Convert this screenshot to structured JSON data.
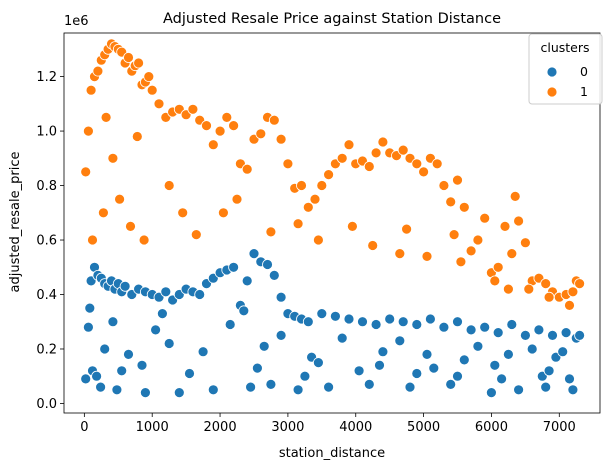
{
  "chart_data": {
    "type": "scatter",
    "title": "Adjusted Resale Price against Station Distance",
    "xlabel": "station_distance",
    "ylabel": "adjusted_resale_price",
    "y_offset_label": "1e6",
    "xlim": [
      -300,
      7600
    ],
    "ylim": [
      -0.035,
      1.36
    ],
    "y_unit_multiplier": 1000000,
    "xticks": [
      0,
      1000,
      2000,
      3000,
      4000,
      5000,
      6000,
      7000
    ],
    "xtick_labels": [
      "0",
      "1000",
      "2000",
      "3000",
      "4000",
      "5000",
      "6000",
      "7000"
    ],
    "yticks": [
      0.0,
      0.2,
      0.4,
      0.6,
      0.8,
      1.0,
      1.2
    ],
    "ytick_labels": [
      "0.0",
      "0.2",
      "0.4",
      "0.6",
      "0.8",
      "1.0",
      "1.2"
    ],
    "grid": false,
    "legend": {
      "title": "clusters",
      "placement": "top-right",
      "entries": [
        {
          "label": "0",
          "color": "#1f77b4"
        },
        {
          "label": "1",
          "color": "#ff7f0e"
        }
      ]
    },
    "series": [
      {
        "name": "0",
        "color": "#1f77b4",
        "x": [
          20,
          60,
          100,
          150,
          200,
          250,
          300,
          350,
          400,
          450,
          500,
          550,
          600,
          700,
          800,
          900,
          1000,
          1100,
          1200,
          1300,
          1400,
          1500,
          1600,
          1700,
          1800,
          1900,
          2000,
          2100,
          2200,
          2300,
          2400,
          2500,
          2600,
          2700,
          2800,
          2900,
          3000,
          3100,
          3200,
          3300,
          3500,
          3700,
          3900,
          4100,
          4300,
          4500,
          4700,
          4900,
          5100,
          5300,
          5500,
          5700,
          5900,
          6100,
          6300,
          6500,
          6700,
          6900,
          7100,
          7250,
          7300,
          120,
          240,
          480,
          900,
          1400,
          1900,
          2450,
          2750,
          3150,
          3600,
          4200,
          4800,
          5400,
          6000,
          6400,
          6800,
          7200,
          300,
          650,
          1250,
          1750,
          2650,
          3350,
          4400,
          5050,
          5600,
          6250,
          6950,
          420,
          1050,
          2150,
          2900,
          3800,
          4650,
          5800,
          6600,
          7050,
          180,
          550,
          850,
          1550,
          2550,
          3250,
          4050,
          4900,
          5500,
          6150,
          6750,
          7150,
          80,
          1150,
          2350,
          3450,
          4350,
          5150,
          6050,
          6850
        ],
        "y": [
          0.09,
          0.28,
          0.45,
          0.5,
          0.47,
          0.46,
          0.44,
          0.43,
          0.45,
          0.42,
          0.44,
          0.41,
          0.43,
          0.4,
          0.42,
          0.41,
          0.4,
          0.39,
          0.41,
          0.38,
          0.4,
          0.42,
          0.41,
          0.4,
          0.44,
          0.46,
          0.48,
          0.49,
          0.5,
          0.36,
          0.45,
          0.55,
          0.52,
          0.51,
          0.47,
          0.39,
          0.33,
          0.32,
          0.31,
          0.3,
          0.33,
          0.32,
          0.31,
          0.3,
          0.29,
          0.31,
          0.3,
          0.29,
          0.31,
          0.28,
          0.3,
          0.27,
          0.28,
          0.26,
          0.29,
          0.25,
          0.27,
          0.25,
          0.26,
          0.24,
          0.25,
          0.12,
          0.06,
          0.05,
          0.04,
          0.04,
          0.05,
          0.06,
          0.07,
          0.05,
          0.06,
          0.07,
          0.06,
          0.07,
          0.04,
          0.05,
          0.06,
          0.05,
          0.2,
          0.18,
          0.22,
          0.19,
          0.21,
          0.17,
          0.19,
          0.18,
          0.16,
          0.18,
          0.17,
          0.3,
          0.27,
          0.29,
          0.25,
          0.24,
          0.23,
          0.21,
          0.2,
          0.19,
          0.1,
          0.12,
          0.14,
          0.11,
          0.13,
          0.1,
          0.12,
          0.11,
          0.1,
          0.09,
          0.1,
          0.09,
          0.35,
          0.33,
          0.34,
          0.15,
          0.14,
          0.13,
          0.14,
          0.12
        ]
      },
      {
        "name": "1",
        "color": "#ff7f0e",
        "x": [
          20,
          60,
          100,
          150,
          200,
          250,
          300,
          350,
          400,
          450,
          500,
          550,
          600,
          650,
          700,
          750,
          800,
          850,
          900,
          950,
          1000,
          1100,
          1200,
          1300,
          1400,
          1500,
          1600,
          1700,
          1800,
          1900,
          2000,
          2100,
          2200,
          2300,
          2400,
          2500,
          2600,
          2700,
          2800,
          2900,
          3000,
          3100,
          3200,
          3300,
          3400,
          3500,
          3600,
          3700,
          3800,
          3900,
          4000,
          4100,
          4200,
          4300,
          4400,
          4500,
          4600,
          4700,
          4800,
          4900,
          5000,
          5100,
          5200,
          5300,
          5400,
          5500,
          5600,
          5700,
          5800,
          5900,
          6000,
          6100,
          6200,
          6300,
          6350,
          6400,
          6500,
          6600,
          6700,
          6800,
          6900,
          7000,
          7100,
          7200,
          7250,
          7300,
          120,
          280,
          420,
          520,
          680,
          880,
          1250,
          1650,
          2050,
          2750,
          3450,
          4250,
          4650,
          5050,
          5550,
          6050,
          6550,
          7150,
          320,
          780,
          1450,
          2250,
          3150,
          3950,
          4750,
          5450,
          6250,
          6850
        ],
        "y": [
          0.85,
          1.0,
          1.15,
          1.2,
          1.22,
          1.26,
          1.28,
          1.3,
          1.32,
          1.31,
          1.3,
          1.29,
          1.25,
          1.27,
          1.22,
          1.24,
          1.25,
          1.17,
          1.18,
          1.2,
          1.15,
          1.1,
          1.05,
          1.07,
          1.08,
          1.06,
          1.08,
          1.04,
          1.02,
          0.95,
          1.0,
          1.05,
          1.02,
          0.88,
          0.86,
          0.97,
          0.99,
          1.05,
          1.04,
          0.97,
          0.88,
          0.79,
          0.8,
          0.72,
          0.75,
          0.8,
          0.84,
          0.88,
          0.9,
          0.95,
          0.88,
          0.89,
          0.87,
          0.92,
          0.96,
          0.92,
          0.91,
          0.93,
          0.9,
          0.88,
          0.85,
          0.9,
          0.88,
          0.8,
          0.74,
          0.82,
          0.72,
          0.56,
          0.6,
          0.68,
          0.48,
          0.5,
          0.65,
          0.55,
          0.76,
          0.67,
          0.59,
          0.45,
          0.46,
          0.44,
          0.41,
          0.39,
          0.4,
          0.41,
          0.45,
          0.44,
          0.6,
          0.7,
          0.9,
          0.75,
          0.65,
          0.6,
          0.8,
          0.62,
          0.7,
          0.63,
          0.6,
          0.58,
          0.55,
          0.54,
          0.52,
          0.45,
          0.42,
          0.36,
          1.05,
          0.98,
          0.7,
          0.75,
          0.66,
          0.65,
          0.64,
          0.62,
          0.42,
          0.39
        ]
      }
    ]
  }
}
